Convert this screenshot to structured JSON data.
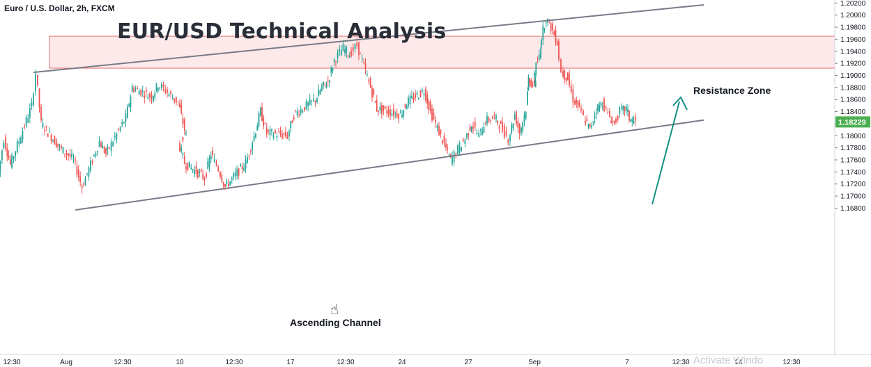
{
  "header": {
    "symbol": "Euro / U.S. Dollar, 2h, FXCM",
    "title": "EUR/USD Technical Analysis"
  },
  "annotations": {
    "resistance_label": "Resistance Zone",
    "channel_label": "Ascending Channel",
    "watermark": "Activate Windo"
  },
  "colors": {
    "bull": "#26a69a",
    "bear": "#ef5350",
    "channel": "#787b86",
    "zone_fill": "#fde8ea",
    "zone_border": "#e57373",
    "arrow": "#138f85",
    "price_tag": "#4caf50"
  },
  "chart_data": {
    "type": "candlestick",
    "y_ticks": [
      "1.16800",
      "1.17000",
      "1.17200",
      "1.17400",
      "1.17600",
      "1.17800",
      "1.18000",
      "1.18200",
      "1.18400",
      "1.18600",
      "1.18800",
      "1.19000",
      "1.19200",
      "1.19400",
      "1.19600",
      "1.19800",
      "1.20000",
      "1.20200"
    ],
    "x_ticks": [
      "12:30",
      "Aug",
      "12:30",
      "10",
      "12:30",
      "17",
      "12:30",
      "24",
      "27",
      "Sep",
      "7",
      "12:30",
      "14",
      "12:30"
    ],
    "ylim": [
      1.1677,
      1.2025
    ],
    "current_price": "1.18229",
    "resistance_zone": [
      1.1912,
      1.1965
    ],
    "channel_upper": [
      {
        "x": "Jul 31",
        "y": 1.1905
      },
      {
        "x": "Sep 12",
        "y": 1.2017
      }
    ],
    "channel_lower": [
      {
        "x": "Aug 3",
        "y": 1.1677
      },
      {
        "x": "Sep 12",
        "y": 1.1826
      }
    ],
    "series": [
      {
        "anchors": [
          [
            "Jul 29 10:30",
            1.1722
          ],
          [
            "Jul 30",
            1.1795
          ],
          [
            "Jul 30 12:00",
            1.1752
          ],
          [
            "Jul 31",
            1.185
          ],
          [
            "Jul 31 08:00",
            1.1905
          ],
          [
            "Jul 31 18:00",
            1.182
          ],
          [
            "Aug 2",
            1.178
          ],
          [
            "Aug 3",
            1.176
          ],
          [
            "Aug 3 16:00",
            1.1715
          ],
          [
            "Aug 4",
            1.179
          ],
          [
            "Aug 4 12:30",
            1.177
          ],
          [
            "Aug 5",
            1.183
          ],
          [
            "Aug 5 12:00",
            1.188
          ],
          [
            "Aug 6",
            1.1865
          ],
          [
            "Aug 6 12:00",
            1.1885
          ],
          [
            "Aug 7",
            1.1875
          ],
          [
            "Aug 9",
            1.1855
          ],
          [
            "Aug 9 12:00",
            1.181
          ],
          [
            "Aug 10",
            1.179
          ],
          [
            "Aug 10 12:00",
            1.1755
          ],
          [
            "Aug 11",
            1.173
          ],
          [
            "Aug 11 12:00",
            1.177
          ],
          [
            "Aug 12",
            1.1745
          ],
          [
            "Aug 12 12:30",
            1.1715
          ],
          [
            "Aug 13",
            1.1755
          ],
          [
            "Aug 13 16:00",
            1.18
          ],
          [
            "Aug 16",
            1.184
          ],
          [
            "Aug 16 12:00",
            1.1805
          ],
          [
            "Aug 17",
            1.18
          ],
          [
            "Aug 17 12:00",
            1.1835
          ],
          [
            "Aug 18",
            1.186
          ],
          [
            "Aug 18 12:00",
            1.188
          ],
          [
            "Aug 19",
            1.189
          ],
          [
            "Aug 19 12:00",
            1.1925
          ],
          [
            "Aug 20",
            1.1945
          ],
          [
            "Aug 20 12:00",
            1.1935
          ],
          [
            "Aug 21",
            1.195
          ],
          [
            "Aug 23",
            1.188
          ],
          [
            "Aug 23 12:00",
            1.1845
          ],
          [
            "Aug 24",
            1.1835
          ],
          [
            "Aug 24 12:00",
            1.1855
          ],
          [
            "Aug 25",
            1.1875
          ],
          [
            "Aug 25 12:00",
            1.184
          ],
          [
            "Aug 26",
            1.1785
          ],
          [
            "Aug 26 12:00",
            1.176
          ],
          [
            "Aug 27",
            1.1795
          ],
          [
            "Aug 27 12:00",
            1.182
          ],
          [
            "Aug 30",
            1.18
          ],
          [
            "Aug 30 12:00",
            1.1825
          ],
          [
            "Aug 31",
            1.183
          ],
          [
            "Aug 31 12:00",
            1.1815
          ],
          [
            "Sep 1",
            1.1795
          ],
          [
            "Sep 1 12:00",
            1.1835
          ],
          [
            "Sep 2",
            1.1805
          ],
          [
            "Sep 2 12:00",
            1.1845
          ],
          [
            "Sep 3",
            1.1895
          ],
          [
            "Sep 3 12:00",
            1.188
          ],
          [
            "Sep 6",
            1.19
          ],
          [
            "Sep 6 12:00",
            1.193
          ],
          [
            "Sep 7",
            1.1955
          ],
          [
            "Sep 7 12:00",
            1.1995
          ],
          [
            "Sep 8",
            1.198
          ],
          [
            "Sep 8 12:00",
            1.1955
          ],
          [
            "Sep 9",
            1.1905
          ],
          [
            "Sep 9 12:00",
            1.1895
          ],
          [
            "Sep 10",
            1.186
          ],
          [
            "Sep 10 12:00",
            1.1845
          ],
          [
            "Sep 13",
            1.183
          ],
          [
            "Sep 13 12:00",
            1.181
          ],
          [
            "Sep 14",
            1.1845
          ],
          [
            "Sep 14 12:00",
            1.1855
          ],
          [
            "Sep 15",
            1.1835
          ],
          [
            "Sep 15 12:00",
            1.182
          ],
          [
            "Sep 16",
            1.184
          ],
          [
            "Sep 16 12:00",
            1.1845
          ],
          [
            "Sep 17",
            1.1829
          ],
          [
            "Sep 17 12:00",
            1.1823
          ]
        ]
      }
    ]
  }
}
